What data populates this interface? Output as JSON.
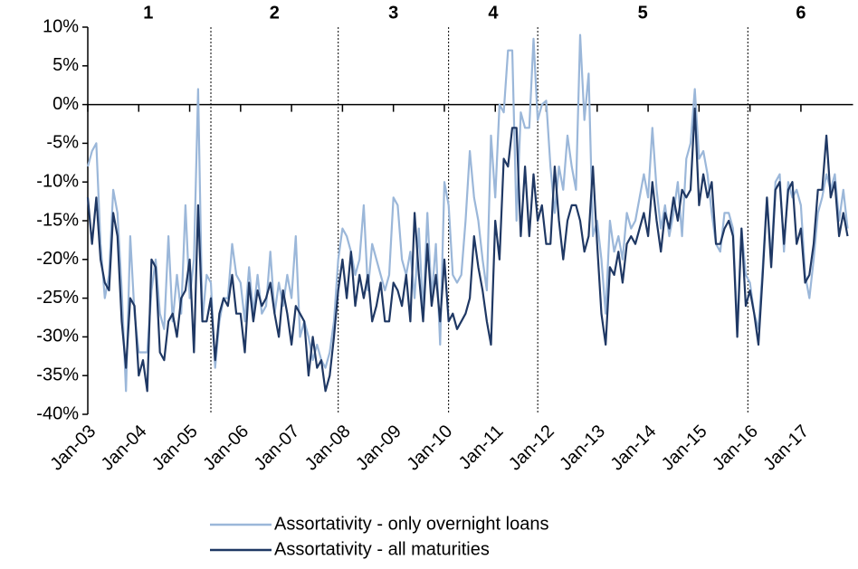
{
  "chart_data": {
    "type": "line",
    "categories": [
      "Jan-03",
      null,
      null,
      null,
      null,
      null,
      null,
      null,
      null,
      null,
      null,
      null,
      "Jan-04",
      null,
      null,
      null,
      null,
      null,
      null,
      null,
      null,
      null,
      null,
      null,
      "Jan-05",
      null,
      null,
      null,
      null,
      null,
      null,
      null,
      null,
      null,
      null,
      null,
      "Jan-06",
      null,
      null,
      null,
      null,
      null,
      null,
      null,
      null,
      null,
      null,
      null,
      "Jan-07",
      null,
      null,
      null,
      null,
      null,
      null,
      null,
      null,
      null,
      null,
      null,
      "Jan-08",
      null,
      null,
      null,
      null,
      null,
      null,
      null,
      null,
      null,
      null,
      null,
      "Jan-09",
      null,
      null,
      null,
      null,
      null,
      null,
      null,
      null,
      null,
      null,
      null,
      "Jan-10",
      null,
      null,
      null,
      null,
      null,
      null,
      null,
      null,
      null,
      null,
      null,
      "Jan-11",
      null,
      null,
      null,
      null,
      null,
      null,
      null,
      null,
      null,
      null,
      null,
      "Jan-12",
      null,
      null,
      null,
      null,
      null,
      null,
      null,
      null,
      null,
      null,
      null,
      "Jan-13",
      null,
      null,
      null,
      null,
      null,
      null,
      null,
      null,
      null,
      null,
      null,
      "Jan-14",
      null,
      null,
      null,
      null,
      null,
      null,
      null,
      null,
      null,
      null,
      null,
      "Jan-15",
      null,
      null,
      null,
      null,
      null,
      null,
      null,
      null,
      null,
      null,
      null,
      "Jan-16",
      null,
      null,
      null,
      null,
      null,
      null,
      null,
      null,
      null,
      null,
      null,
      "Jan-17",
      null,
      null,
      null,
      null,
      null,
      null,
      null,
      null,
      null,
      null,
      null
    ],
    "series": [
      {
        "name": "Assortativity - only overnight loans",
        "color": "#9bb7d9",
        "values": [
          -8,
          -6,
          -5,
          -18,
          -25,
          -22,
          -11,
          -14,
          -24,
          -37,
          -17,
          -27,
          -32,
          -32,
          -32,
          -24,
          -20,
          -27,
          -29,
          -17,
          -28,
          -22,
          -27,
          -13,
          -25,
          -20,
          2,
          -28,
          -22,
          -23,
          -34,
          -28,
          -25,
          -25,
          -18,
          -22,
          -23,
          -28,
          -21,
          -27,
          -22,
          -27,
          -26,
          -19,
          -27,
          -23,
          -26,
          -22,
          -25,
          -17,
          -30,
          -28,
          -30,
          -33,
          -31,
          -33,
          -34,
          -32,
          -28,
          -20,
          -16,
          -17,
          -19,
          -22,
          -20,
          -13,
          -24,
          -18,
          -20,
          -22,
          -24,
          -22,
          -12,
          -13,
          -20,
          -22,
          -19,
          -25,
          -16,
          -27,
          -14,
          -25,
          -18,
          -31,
          -10,
          -13,
          -22,
          -23,
          -22,
          -15,
          -6,
          -12,
          -15,
          -20,
          -24,
          -4,
          -12,
          0,
          -1,
          7,
          7,
          -15,
          -1,
          -3,
          -3,
          8.5,
          -2,
          0,
          0.5,
          -8,
          -14,
          -8,
          -11,
          -4,
          -8,
          -11,
          9,
          -2,
          4,
          -17,
          -15,
          -20,
          -27,
          -15,
          -19,
          -17,
          -20,
          -14,
          -16,
          -15,
          -12,
          -9,
          -12,
          -3,
          -11,
          -16,
          -13,
          -17,
          -14,
          -10,
          -17,
          -7,
          -5,
          2,
          -7,
          -6,
          -9,
          -14,
          -18,
          -19,
          -14,
          -14,
          -16,
          -29,
          -16,
          -22,
          -23,
          -27,
          -29,
          -21,
          -12,
          -20,
          -10,
          -9,
          -19,
          -10,
          -12,
          -11,
          -13,
          -22,
          -25,
          -20,
          -14,
          -12,
          -9,
          -11,
          -9,
          -15,
          -11,
          -16
        ]
      },
      {
        "name": "Assortativity - all maturities",
        "color": "#1f3864",
        "values": [
          -12,
          -18,
          -12,
          -20,
          -23,
          -24,
          -14,
          -17,
          -28,
          -34,
          -25,
          -26,
          -35,
          -33,
          -37,
          -20,
          -21,
          -32,
          -33,
          -28,
          -27,
          -30,
          -25,
          -24,
          -20,
          -32,
          -13,
          -28,
          -28,
          -25,
          -33,
          -27,
          -25,
          -26,
          -22,
          -27,
          -27,
          -32,
          -23,
          -28,
          -24,
          -26,
          -25,
          -23,
          -27,
          -30,
          -24,
          -27,
          -31,
          -26,
          -27,
          -28,
          -35,
          -30,
          -34,
          -33,
          -37,
          -35,
          -30,
          -24,
          -20,
          -25,
          -19,
          -26,
          -22,
          -25,
          -22,
          -28,
          -26,
          -23,
          -28,
          -28,
          -23,
          -24,
          -26,
          -22,
          -28,
          -14,
          -22,
          -28,
          -18,
          -26,
          -22,
          -28,
          -20,
          -28,
          -27,
          -29,
          -28,
          -27,
          -25,
          -17,
          -21,
          -24,
          -28,
          -31,
          -15,
          -20,
          -7,
          -8,
          -3,
          -3,
          -17,
          -8,
          -17,
          -9,
          -15,
          -13,
          -18,
          -18,
          -8,
          -15,
          -20,
          -15,
          -13,
          -13,
          -15,
          -19,
          -17,
          -8,
          -18,
          -27,
          -31,
          -21,
          -22,
          -19,
          -23,
          -18,
          -17,
          -18,
          -16,
          -14,
          -17,
          -10,
          -15,
          -19,
          -14,
          -16,
          -12,
          -15,
          -11,
          -12,
          -11,
          -0.5,
          -13,
          -9,
          -12,
          -10,
          -18,
          -18,
          -16,
          -15,
          -17,
          -30,
          -16,
          -26,
          -24,
          -27,
          -31,
          -22,
          -12,
          -21,
          -11,
          -10,
          -18,
          -11,
          -10,
          -18,
          -16,
          -23,
          -22,
          -18,
          -11,
          -11,
          -4,
          -12,
          -10,
          -17,
          -14,
          -17
        ]
      }
    ],
    "ylim": [
      -40,
      10
    ],
    "yticks": [
      {
        "value": -40,
        "label": "-40%"
      },
      {
        "value": -35,
        "label": "-35%"
      },
      {
        "value": -30,
        "label": "-30%"
      },
      {
        "value": -25,
        "label": "-25%"
      },
      {
        "value": -20,
        "label": "-20%"
      },
      {
        "value": -15,
        "label": "-15%"
      },
      {
        "value": -10,
        "label": "-10%"
      },
      {
        "value": -5,
        "label": "-5%"
      },
      {
        "value": 0,
        "label": "0%"
      },
      {
        "value": 5,
        "label": "5%"
      },
      {
        "value": 10,
        "label": "10%"
      }
    ],
    "period_breaks": [
      29,
      59,
      85,
      106,
      155.5
    ],
    "period_labels": [
      "1",
      "2",
      "3",
      "4",
      "5",
      "6"
    ],
    "grid": false
  }
}
